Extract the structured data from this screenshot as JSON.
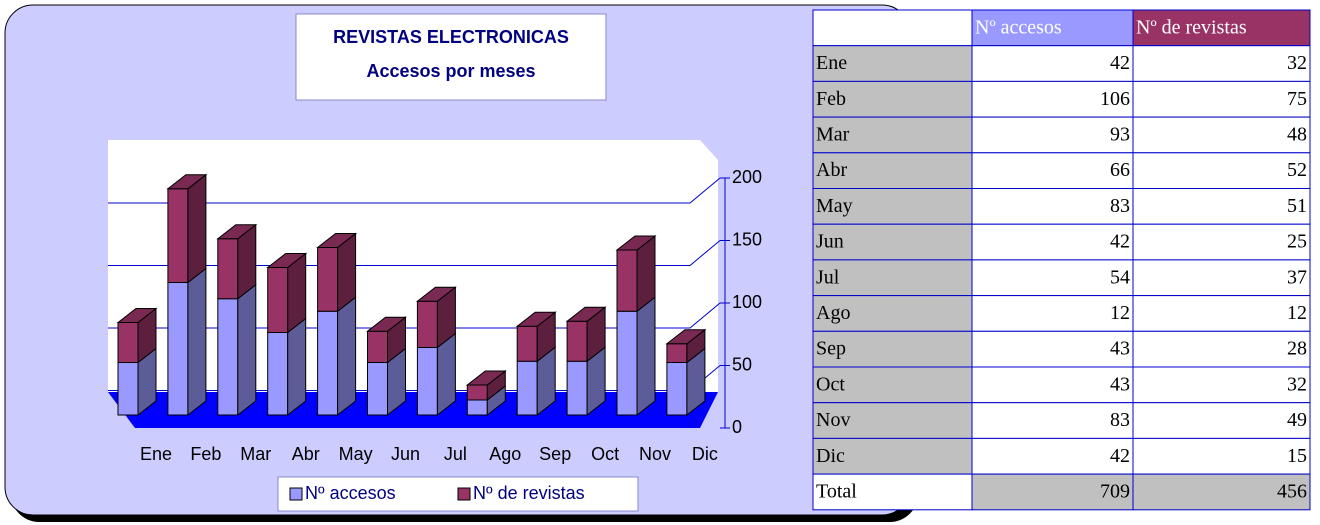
{
  "chart_data": {
    "type": "bar",
    "stacked": true,
    "title": "REVISTAS ELECTRONICAS",
    "subtitle": "Accesos por meses",
    "categories": [
      "Ene",
      "Feb",
      "Mar",
      "Abr",
      "May",
      "Jun",
      "Jul",
      "Ago",
      "Sep",
      "Oct",
      "Nov",
      "Dic"
    ],
    "series": [
      {
        "name": "Nº accesos",
        "color": "#9999ff",
        "values": [
          42,
          106,
          93,
          66,
          83,
          42,
          54,
          12,
          43,
          43,
          83,
          42
        ]
      },
      {
        "name": "Nº de revistas",
        "color": "#993366",
        "values": [
          32,
          75,
          48,
          52,
          51,
          25,
          37,
          12,
          28,
          32,
          49,
          15
        ]
      }
    ],
    "ylim": [
      0,
      200
    ],
    "yticks": [
      0,
      50,
      100,
      150,
      200
    ],
    "grid": true,
    "legend": "bottom"
  },
  "table": {
    "total_label": "Total",
    "totals": [
      709,
      456
    ]
  }
}
